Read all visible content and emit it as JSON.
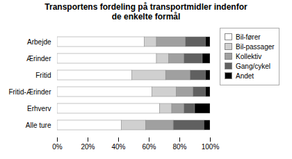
{
  "chart_data": {
    "type": "bar",
    "orientation": "horizontal",
    "stacked": true,
    "title": "Transportens fordeling på transportmidler indenfor\nde enkelte formål",
    "categories": [
      "Arbejde",
      "Ærinder",
      "Fritid",
      "Fritid-Ærinder",
      "Erhverv",
      "Alle ture"
    ],
    "series": [
      {
        "name": "Bil-fører",
        "color": "#ffffff",
        "values": [
          57,
          65,
          49,
          62,
          67,
          42
        ]
      },
      {
        "name": "Bil-passager",
        "color": "#d0d0d0",
        "values": [
          8,
          8,
          22,
          16,
          8,
          16
        ]
      },
      {
        "name": "Kollektiv",
        "color": "#a0a0a0",
        "values": [
          19,
          10,
          16,
          11,
          8,
          18
        ]
      },
      {
        "name": "Gang/cykel",
        "color": "#606060",
        "values": [
          13,
          12,
          10,
          8,
          7,
          20
        ]
      },
      {
        "name": "Andet",
        "color": "#000000",
        "values": [
          3,
          5,
          3,
          3,
          10,
          4
        ]
      }
    ],
    "xlim": [
      0,
      100
    ],
    "xticks": [
      {
        "value": 0,
        "label": "0%"
      },
      {
        "value": 20,
        "label": "20%"
      },
      {
        "value": 40,
        "label": "40%"
      },
      {
        "value": 60,
        "label": "60%"
      },
      {
        "value": 80,
        "label": "80%"
      },
      {
        "value": 100,
        "label": "100%"
      }
    ],
    "grid": false,
    "legend": "right"
  }
}
